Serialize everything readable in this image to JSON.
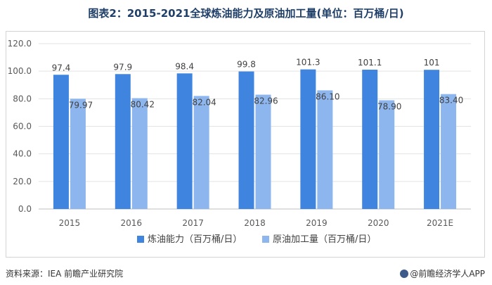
{
  "header": {
    "title": "图表2：2015-2021全球炼油能力及原油加工量(单位：百万桶/日)"
  },
  "footer": {
    "source": "资料来源：IEA 前瞻产业研究院",
    "brand": "@前瞻经济学人APP"
  },
  "colors": {
    "series1": "#3f85e0",
    "series2": "#8db6ee",
    "title": "#1f3f68"
  },
  "chart_data": {
    "type": "bar",
    "categories": [
      "2015",
      "2016",
      "2017",
      "2018",
      "2019",
      "2020",
      "2021E"
    ],
    "series": [
      {
        "name": "炼油能力（百万桶/日）",
        "values": [
          97.4,
          97.9,
          98.4,
          99.8,
          101.3,
          101.1,
          101
        ],
        "labels": [
          "97.4",
          "97.9",
          "98.4",
          "99.8",
          "101.3",
          "101.1",
          "101"
        ]
      },
      {
        "name": "原油加工量（百万桶/日）",
        "values": [
          79.97,
          80.42,
          82.04,
          82.96,
          86.1,
          78.9,
          83.4
        ],
        "labels": [
          "79.97",
          "80.42",
          "82.04",
          "82.96",
          "86.10",
          "78.90",
          "83.40"
        ]
      }
    ],
    "ylim": [
      0,
      120
    ],
    "yticks": [
      "0.0",
      "20.0",
      "40.0",
      "60.0",
      "80.0",
      "100.0",
      "120.0"
    ],
    "grid": true,
    "legend": "bottom"
  }
}
